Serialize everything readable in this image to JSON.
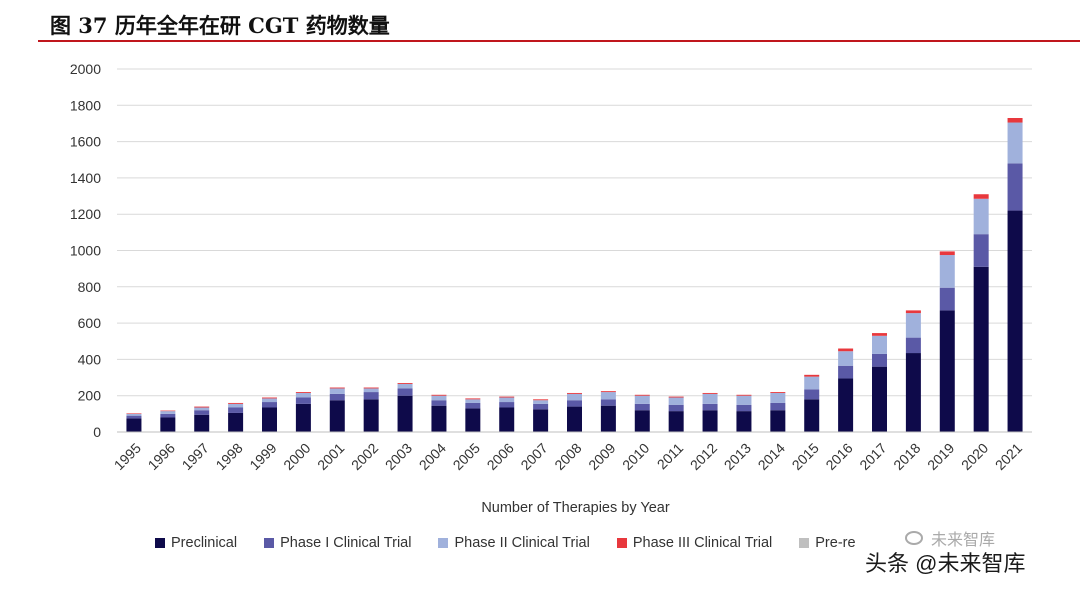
{
  "header": {
    "title": "图 37 历年全年在研 CGT 药物数量"
  },
  "colors": {
    "preclinical": "#0e0a4a",
    "phase1": "#5a59a6",
    "phase2": "#a0b1dc",
    "phase3": "#e8383d",
    "prereg": "#bfbfbf",
    "gridline": "#d9d9d9",
    "title_rule": "#c0161d"
  },
  "watermark": {
    "top_text": "未来智库",
    "bottom_text": "头条 @未来智库"
  },
  "chart_data": {
    "type": "bar",
    "stacked": true,
    "title": "",
    "xlabel": "Number of Therapies by Year",
    "ylabel": "",
    "ylim": [
      0,
      2000
    ],
    "yticks": [
      0,
      200,
      400,
      600,
      800,
      1000,
      1200,
      1400,
      1600,
      1800,
      2000
    ],
    "grid": true,
    "legend_position": "bottom",
    "categories": [
      "1995",
      "1996",
      "1997",
      "1998",
      "1999",
      "2000",
      "2001",
      "2002",
      "2003",
      "2004",
      "2005",
      "2006",
      "2007",
      "2008",
      "2009",
      "2010",
      "2011",
      "2012",
      "2013",
      "2014",
      "2015",
      "2016",
      "2017",
      "2018",
      "2019",
      "2020",
      "2021"
    ],
    "series": [
      {
        "name": "Preclinical",
        "color_key": "preclinical",
        "values": [
          75,
          80,
          95,
          105,
          135,
          155,
          175,
          180,
          200,
          145,
          130,
          135,
          125,
          140,
          145,
          120,
          115,
          120,
          115,
          120,
          180,
          295,
          360,
          435,
          670,
          910,
          1220
        ]
      },
      {
        "name": "Phase I Clinical Trial",
        "color_key": "phase1",
        "values": [
          15,
          20,
          25,
          30,
          30,
          35,
          35,
          40,
          40,
          30,
          30,
          30,
          30,
          35,
          35,
          35,
          35,
          35,
          35,
          40,
          55,
          70,
          70,
          85,
          125,
          180,
          260
        ]
      },
      {
        "name": "Phase II Clinical Trial",
        "color_key": "phase2",
        "values": [
          10,
          15,
          15,
          20,
          20,
          25,
          30,
          20,
          25,
          25,
          20,
          25,
          20,
          35,
          40,
          45,
          40,
          55,
          50,
          55,
          70,
          80,
          100,
          135,
          180,
          195,
          225
        ]
      },
      {
        "name": "Phase III Clinical Trial",
        "color_key": "phase3",
        "values": [
          3,
          3,
          5,
          5,
          5,
          5,
          5,
          5,
          5,
          5,
          5,
          5,
          5,
          5,
          5,
          5,
          5,
          5,
          5,
          5,
          10,
          15,
          15,
          15,
          20,
          25,
          25
        ]
      },
      {
        "name": "Pre-registration",
        "color_key": "prereg",
        "legend_label_visible": "Pre-re",
        "values": [
          0,
          0,
          0,
          0,
          0,
          0,
          0,
          0,
          0,
          0,
          0,
          0,
          0,
          0,
          0,
          0,
          0,
          0,
          0,
          0,
          0,
          0,
          0,
          0,
          0,
          0,
          0
        ]
      }
    ]
  }
}
